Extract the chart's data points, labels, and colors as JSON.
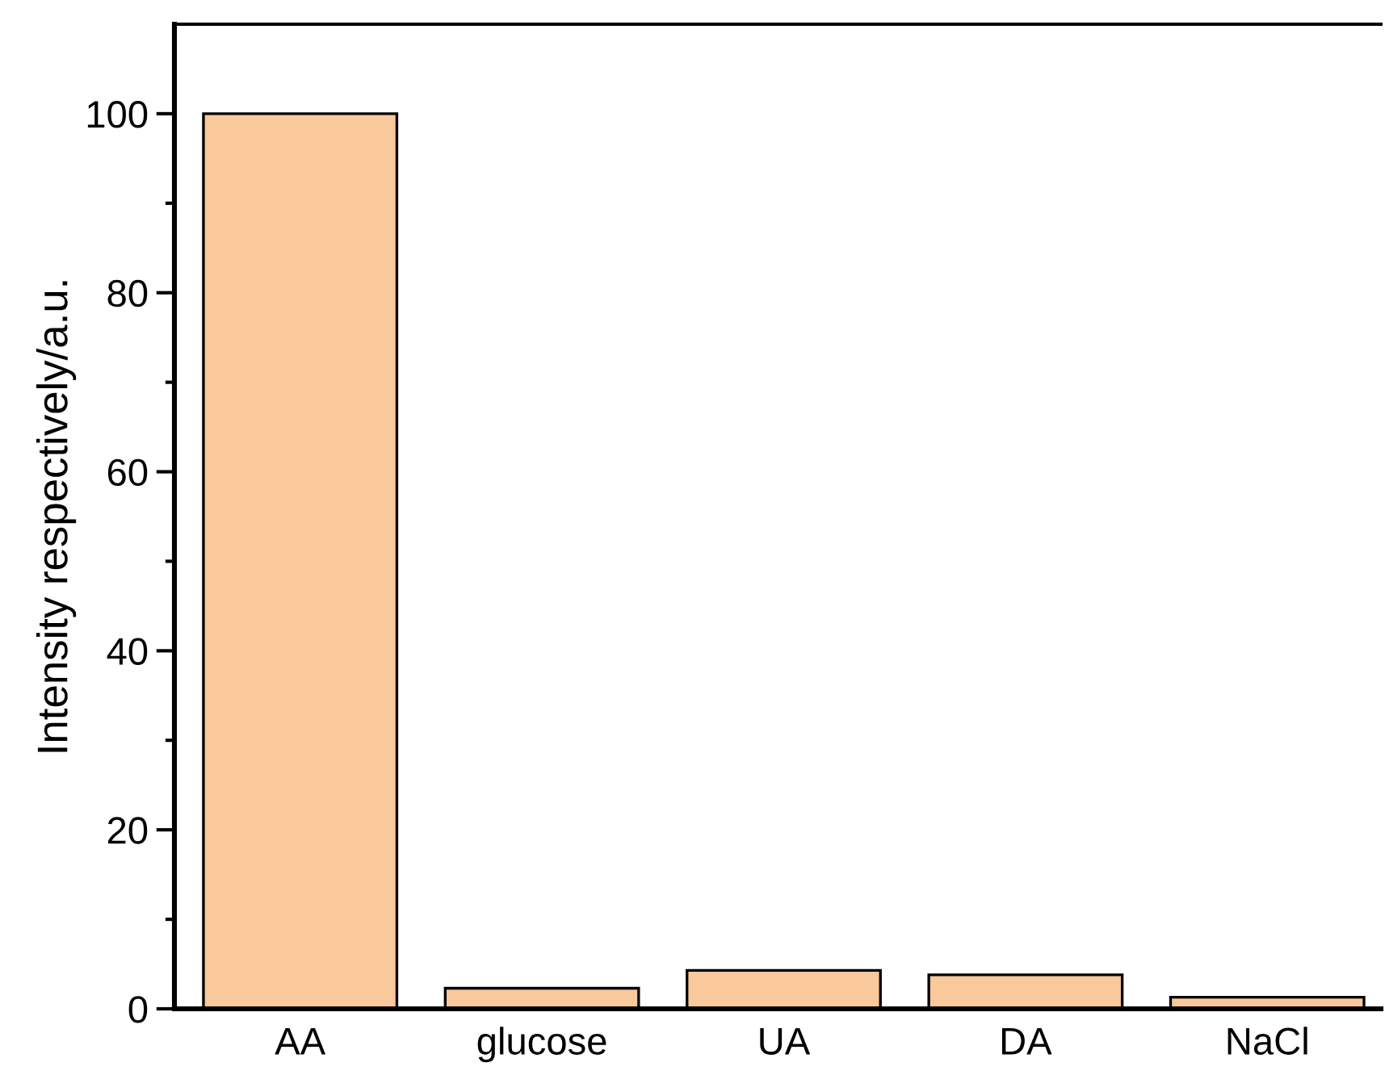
{
  "chart_data": {
    "type": "bar",
    "ylabel": "Intensity respectively/a.u.",
    "categories": [
      "AA",
      "glucose",
      "UA",
      "DA",
      "NaCl"
    ],
    "values": [
      100,
      2.3,
      4.3,
      3.8,
      1.3
    ],
    "color": "#f9c89b",
    "ylim": [
      0,
      110
    ],
    "yticks": [
      0,
      20,
      40,
      60,
      80,
      100
    ],
    "grid": false
  }
}
